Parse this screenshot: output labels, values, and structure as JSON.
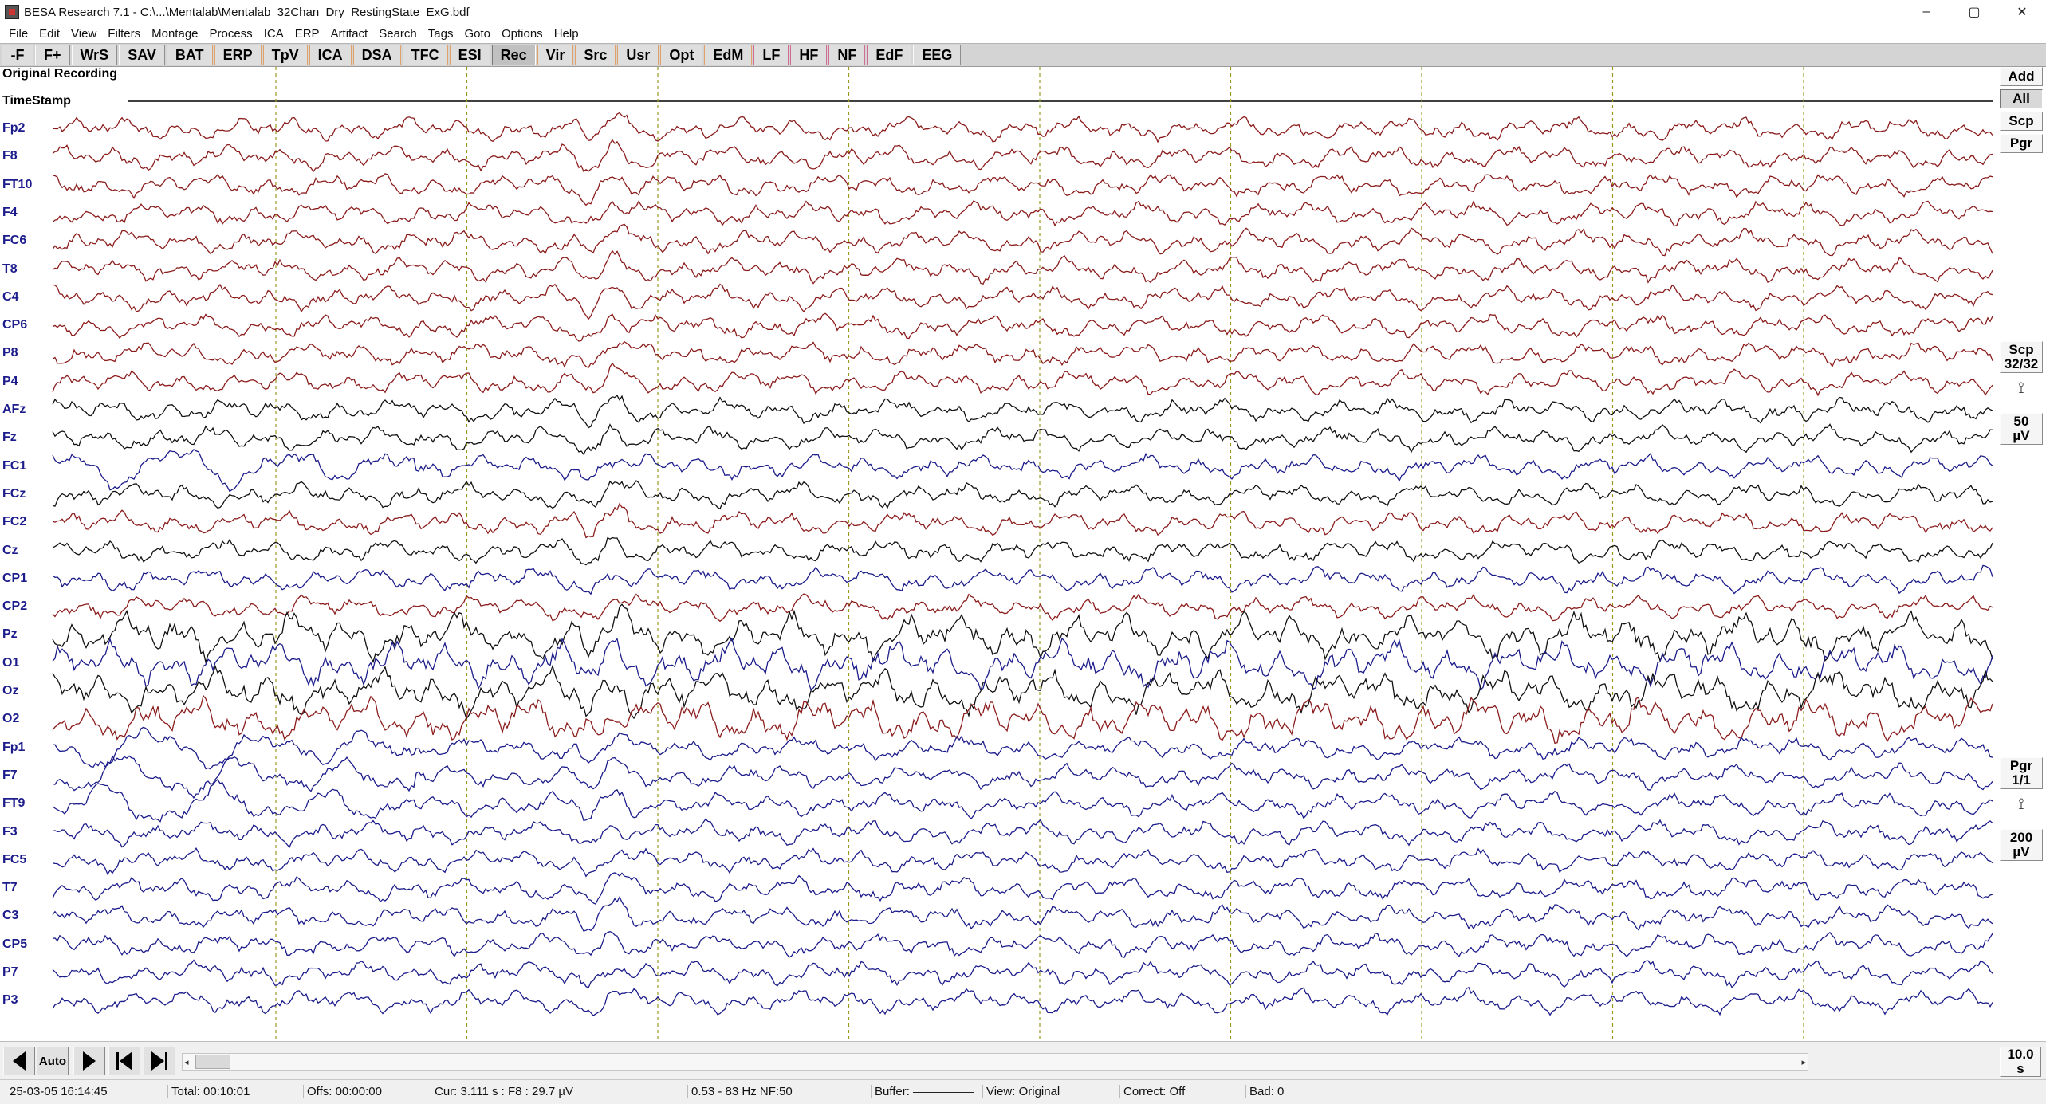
{
  "window": {
    "title": "BESA Research 7.1 - C:\\...\\Mentalab\\Mentalab_32Chan_Dry_RestingState_ExG.bdf",
    "controls": [
      "–",
      "▢",
      "✕"
    ]
  },
  "menu": [
    "File",
    "Edit",
    "View",
    "Filters",
    "Montage",
    "Process",
    "ICA",
    "ERP",
    "Artifact",
    "Search",
    "Tags",
    "Goto",
    "Options",
    "Help"
  ],
  "toolbar": [
    {
      "label": "-F",
      "style": "plain"
    },
    {
      "label": "F+",
      "style": "plain"
    },
    {
      "label": "WrS",
      "style": "plain"
    },
    {
      "label": "SAV",
      "style": "plain"
    },
    {
      "label": "BAT",
      "style": "orange"
    },
    {
      "label": "ERP",
      "style": "orange"
    },
    {
      "label": "TpV",
      "style": "orange"
    },
    {
      "label": "ICA",
      "style": "orange"
    },
    {
      "label": "DSA",
      "style": "orange"
    },
    {
      "label": "TFC",
      "style": "orange"
    },
    {
      "label": "ESI",
      "style": "orange"
    },
    {
      "label": "Rec",
      "style": "pressed"
    },
    {
      "label": "Vir",
      "style": "orange"
    },
    {
      "label": "Src",
      "style": "orange"
    },
    {
      "label": "Usr",
      "style": "orange"
    },
    {
      "label": "Opt",
      "style": "orange"
    },
    {
      "label": "EdM",
      "style": "orange"
    },
    {
      "label": "LF",
      "style": "pink"
    },
    {
      "label": "HF",
      "style": "pink"
    },
    {
      "label": "NF",
      "style": "pink"
    },
    {
      "label": "EdF",
      "style": "pink"
    },
    {
      "label": "EEG",
      "style": "plain"
    }
  ],
  "recording": {
    "label": "Original Recording",
    "timestamp_label": "TimeStamp",
    "marker_color": "#9a9a22"
  },
  "channels": [
    {
      "name": "Fp2",
      "color": "#8b1c1c"
    },
    {
      "name": "F8",
      "color": "#8b1c1c"
    },
    {
      "name": "FT10",
      "color": "#8b1c1c"
    },
    {
      "name": "F4",
      "color": "#8b1c1c"
    },
    {
      "name": "FC6",
      "color": "#8b1c1c"
    },
    {
      "name": "T8",
      "color": "#8b1c1c"
    },
    {
      "name": "C4",
      "color": "#8b1c1c"
    },
    {
      "name": "CP6",
      "color": "#8b1c1c"
    },
    {
      "name": "P8",
      "color": "#8b1c1c"
    },
    {
      "name": "P4",
      "color": "#8b1c1c"
    },
    {
      "name": "AFz",
      "color": "#111111"
    },
    {
      "name": "Fz",
      "color": "#111111"
    },
    {
      "name": "FC1",
      "color": "#1c1c8b"
    },
    {
      "name": "FCz",
      "color": "#111111"
    },
    {
      "name": "FC2",
      "color": "#8b1c1c"
    },
    {
      "name": "Cz",
      "color": "#111111"
    },
    {
      "name": "CP1",
      "color": "#1c1c8b"
    },
    {
      "name": "CP2",
      "color": "#8b1c1c"
    },
    {
      "name": "Pz",
      "color": "#111111"
    },
    {
      "name": "O1",
      "color": "#1c1c8b"
    },
    {
      "name": "Oz",
      "color": "#111111"
    },
    {
      "name": "O2",
      "color": "#8b1c1c"
    },
    {
      "name": "Fp1",
      "color": "#1c1c8b"
    },
    {
      "name": "F7",
      "color": "#1c1c8b"
    },
    {
      "name": "FT9",
      "color": "#1c1c8b"
    },
    {
      "name": "F3",
      "color": "#1c1c8b"
    },
    {
      "name": "FC5",
      "color": "#1c1c8b"
    },
    {
      "name": "T7",
      "color": "#1c1c8b"
    },
    {
      "name": "C3",
      "color": "#1c1c8b"
    },
    {
      "name": "CP5",
      "color": "#1c1c8b"
    },
    {
      "name": "P7",
      "color": "#1c1c8b"
    },
    {
      "name": "P3",
      "color": "#1c1c8b"
    }
  ],
  "right_panel": {
    "add": "Add",
    "all": "All",
    "scp": "Scp",
    "pgr": "Pgr",
    "scp_count_top": "Scp",
    "scp_count_bottom": "32/32",
    "scale1_value": "50",
    "scale1_unit": "µV",
    "pgr_count_top": "Pgr",
    "pgr_count_bottom": "1/1",
    "scale2_value": "200",
    "scale2_unit": "µV"
  },
  "navigation": {
    "auto": "Auto",
    "page_value": "10.0",
    "page_unit": "s"
  },
  "status": {
    "datetime": "25-03-05  16:14:45",
    "total": "Total: 00:10:01",
    "offset": "Offs: 00:00:00",
    "cursor": "Cur: 3.111 s : F8 : 29.7 µV",
    "filters": "0.53 - 83 Hz NF:50",
    "buffer": "Buffer:",
    "view": "View: Original",
    "correct": "Correct: Off",
    "bad": "Bad: 0"
  }
}
